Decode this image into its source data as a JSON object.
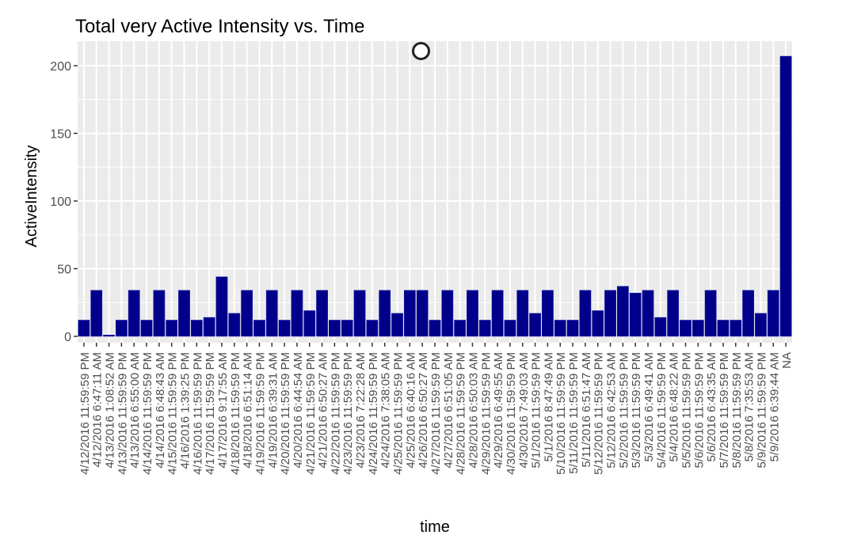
{
  "chart_data": {
    "type": "bar",
    "title": "Total very Active Intensity vs. Time",
    "xlabel": "time",
    "ylabel": "ActiveIntensity",
    "ylim": [
      0,
      215
    ],
    "yticks": [
      0,
      50,
      100,
      150,
      200
    ],
    "grid": true,
    "legend": "none",
    "colors": {
      "bar_fill": "#00008b",
      "panel_bg": "#ebebeb",
      "grid": "#ffffff"
    },
    "categories": [
      "4/12/2016 11:59:59 PM",
      "4/12/2016 6:47:11 AM",
      "4/13/2016 1:08:52 AM",
      "4/13/2016 11:59:59 PM",
      "4/13/2016 6:55:00 AM",
      "4/14/2016 11:59:59 PM",
      "4/14/2016 6:48:43 AM",
      "4/15/2016 11:59:59 PM",
      "4/16/2016 1:39:25 PM",
      "4/16/2016 11:59:59 PM",
      "4/17/2016 11:59:59 PM",
      "4/17/2016 9:17:55 AM",
      "4/18/2016 11:59:59 PM",
      "4/18/2016 6:51:14 AM",
      "4/19/2016 11:59:59 PM",
      "4/19/2016 6:39:31 AM",
      "4/20/2016 11:59:59 PM",
      "4/20/2016 6:44:54 AM",
      "4/21/2016 11:59:59 PM",
      "4/21/2016 6:50:27 AM",
      "4/22/2016 11:59:59 PM",
      "4/23/2016 11:59:59 PM",
      "4/23/2016 7:22:28 AM",
      "4/24/2016 11:59:59 PM",
      "4/24/2016 7:38:05 AM",
      "4/25/2016 11:59:59 PM",
      "4/25/2016 6:40:16 AM",
      "4/26/2016 6:50:27 AM",
      "4/27/2016 11:59:59 PM",
      "4/27/2016 6:51:05 AM",
      "4/28/2016 11:59:59 PM",
      "4/28/2016 6:50:03 AM",
      "4/29/2016 11:59:59 PM",
      "4/29/2016 6:49:55 AM",
      "4/30/2016 11:59:59 PM",
      "4/30/2016 7:49:03 AM",
      "5/1/2016 11:59:59 PM",
      "5/1/2016 8:47:49 AM",
      "5/10/2016 11:59:59 PM",
      "5/11/2016 11:59:59 PM",
      "5/11/2016 6:51:47 AM",
      "5/12/2016 11:59:59 PM",
      "5/12/2016 6:42:53 AM",
      "5/2/2016 11:59:59 PM",
      "5/3/2016 11:59:59 PM",
      "5/3/2016 6:49:41 AM",
      "5/4/2016 11:59:59 PM",
      "5/4/2016 6:48:22 AM",
      "5/5/2016 11:59:59 PM",
      "5/6/2016 11:59:59 PM",
      "5/6/2016 6:43:35 AM",
      "5/7/2016 11:59:59 PM",
      "5/8/2016 11:59:59 PM",
      "5/8/2016 7:35:53 AM",
      "5/9/2016 11:59:59 PM",
      "5/9/2016 6:39:44 AM",
      "NA"
    ],
    "values": [
      12,
      34,
      1,
      12,
      34,
      12,
      34,
      12,
      34,
      12,
      14,
      44,
      17,
      34,
      12,
      34,
      12,
      34,
      19,
      34,
      12,
      12,
      34,
      12,
      34,
      17,
      34,
      34,
      12,
      34,
      12,
      34,
      12,
      34,
      12,
      34,
      17,
      34,
      12,
      12,
      34,
      19,
      34,
      37,
      32,
      34,
      14,
      34,
      12,
      12,
      34,
      12,
      12,
      34,
      17,
      34,
      207
    ]
  }
}
